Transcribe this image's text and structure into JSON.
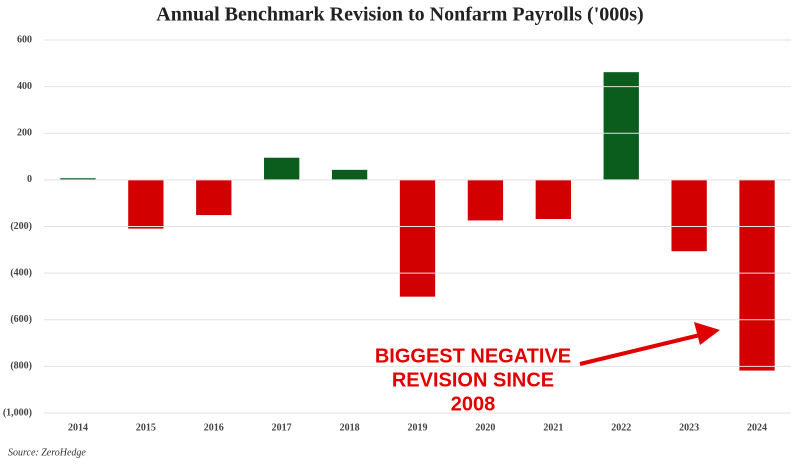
{
  "chart_data": {
    "type": "bar",
    "title": "Annual Benchmark Revision to Nonfarm Payrolls ('000s)",
    "categories": [
      "2014",
      "2015",
      "2016",
      "2017",
      "2018",
      "2019",
      "2020",
      "2021",
      "2022",
      "2023",
      "2024"
    ],
    "values": [
      7,
      -209,
      -151,
      95,
      43,
      -501,
      -174,
      -168,
      462,
      -306,
      -818
    ],
    "colors": {
      "positive": "#0b5d1e",
      "negative": "#d20000"
    },
    "ylim": [
      -1000,
      600
    ],
    "yticks": [
      600,
      400,
      200,
      0,
      {
        "value": -200,
        "label": "(200)"
      },
      {
        "value": -400,
        "label": "(400)"
      },
      {
        "value": -600,
        "label": "(600)"
      },
      {
        "value": -800,
        "label": "(800)"
      },
      {
        "value": -1000,
        "label": "(1,000)"
      }
    ],
    "grid": true,
    "annotation": [
      "BIGGEST NEGATIVE",
      "REVISION SINCE",
      "2008"
    ],
    "source": "Source: ZeroHedge"
  }
}
